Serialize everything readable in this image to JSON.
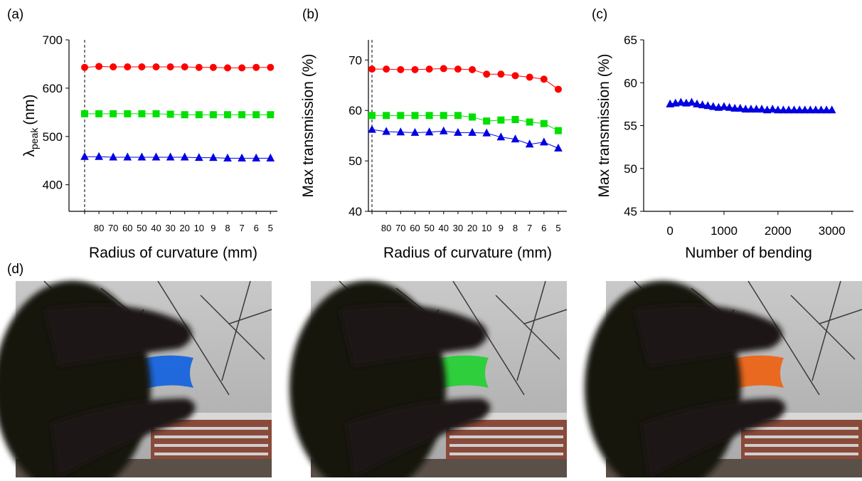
{
  "chart_data": [
    {
      "type": "line",
      "panel_label": "(a)",
      "x_label": "Radius of curvature (mm)",
      "y_label": {
        "symbol": "λ",
        "subscript": "peak",
        "unit": "(nm)"
      },
      "categories": [
        null,
        "80",
        "70",
        "60",
        "50",
        "40",
        "30",
        "20",
        "10",
        "9",
        "8",
        "7",
        "6",
        "5"
      ],
      "ylim": [
        345,
        700
      ],
      "yticks": [
        400,
        500,
        600,
        700
      ],
      "series": [
        {
          "color": "#ff0000",
          "marker": "circle",
          "values": [
            643,
            645,
            644,
            644,
            644,
            644,
            644,
            644,
            643,
            643,
            642,
            642,
            643,
            643
          ]
        },
        {
          "color": "#00e000",
          "marker": "square",
          "values": [
            547,
            547,
            547,
            547,
            547,
            547,
            546,
            545,
            545,
            545,
            545,
            545,
            545,
            545
          ]
        },
        {
          "color": "#0000e0",
          "marker": "triangle",
          "values": [
            458,
            458,
            457,
            457,
            457,
            457,
            457,
            457,
            456,
            456,
            455,
            455,
            455,
            455
          ]
        }
      ]
    },
    {
      "type": "line",
      "panel_label": "(b)",
      "x_label": "Radius of curvature (mm)",
      "y_label": "Max transmission (%)",
      "categories": [
        null,
        "80",
        "70",
        "60",
        "50",
        "40",
        "30",
        "20",
        "10",
        "9",
        "8",
        "7",
        "6",
        "5"
      ],
      "ylim": [
        40,
        74
      ],
      "yticks": [
        40,
        50,
        60,
        70
      ],
      "series": [
        {
          "color": "#ff0000",
          "marker": "circle",
          "values": [
            68.2,
            68.2,
            68.1,
            68.1,
            68.2,
            68.3,
            68.2,
            68.1,
            67.2,
            67.2,
            66.9,
            66.6,
            66.2,
            64.2
          ]
        },
        {
          "color": "#00e000",
          "marker": "square",
          "values": [
            59,
            59,
            59,
            59,
            59,
            59,
            59,
            58.7,
            57.9,
            58.1,
            58.2,
            57.7,
            57.4,
            56
          ]
        },
        {
          "color": "#0000e0",
          "marker": "triangle",
          "values": [
            56.2,
            55.8,
            55.7,
            55.6,
            55.7,
            55.9,
            55.6,
            55.6,
            55.5,
            54.7,
            54.3,
            53.3,
            53.7,
            52.5
          ]
        }
      ]
    },
    {
      "type": "scatter",
      "panel_label": "(c)",
      "x_label": "Number of bending",
      "y_label": "Max transmission (%)",
      "x": [
        0,
        100,
        200,
        300,
        400,
        500,
        600,
        700,
        800,
        900,
        1000,
        1100,
        1200,
        1300,
        1400,
        1500,
        1600,
        1700,
        1800,
        1900,
        2000,
        2100,
        2200,
        2300,
        2400,
        2500,
        2600,
        2700,
        2800,
        2900,
        3000
      ],
      "xlim": [
        -490,
        3400
      ],
      "xticks": [
        0,
        1000,
        2000,
        3000
      ],
      "ylim": [
        45,
        65
      ],
      "yticks": [
        45,
        50,
        55,
        60,
        65
      ],
      "series": [
        {
          "color": "#0000e0",
          "marker": "triangle",
          "values": [
            57.5,
            57.6,
            57.7,
            57.6,
            57.7,
            57.5,
            57.4,
            57.3,
            57.2,
            57.1,
            57.2,
            57.1,
            57.0,
            57.0,
            56.9,
            56.9,
            56.9,
            56.9,
            56.8,
            56.9,
            56.8,
            56.8,
            56.8,
            56.8,
            56.8,
            56.8,
            56.8,
            56.8,
            56.8,
            56.8,
            56.8
          ]
        }
      ]
    }
  ],
  "figure": {
    "photo_label": "(d)"
  }
}
